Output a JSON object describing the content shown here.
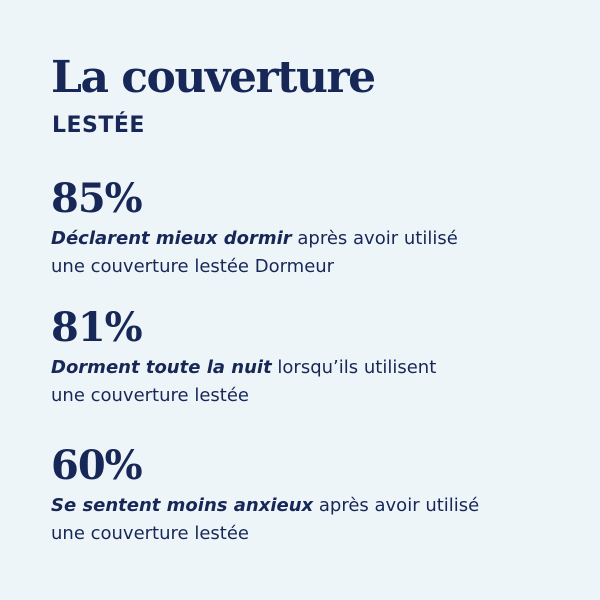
{
  "header": {
    "title": "La couverture",
    "subtitle": "LESTÉE"
  },
  "stats": [
    {
      "percent": "85%",
      "emphasis": "Déclarent mieux dormir",
      "text_line1": " après avoir utilisé",
      "text_line2": "une couverture lestée Dormeur"
    },
    {
      "percent": "81%",
      "emphasis": "Dorment toute la nuit",
      "text_line1": " lorsqu’ils utilisent",
      "text_line2": "une couverture lestée"
    },
    {
      "percent": "60%",
      "emphasis": "Se sentent moins anxieux",
      "text_line1": " après avoir utilisé",
      "text_line2": "une couverture lestée"
    }
  ],
  "colors": {
    "background": "#eef5f9",
    "text": "#172757"
  }
}
